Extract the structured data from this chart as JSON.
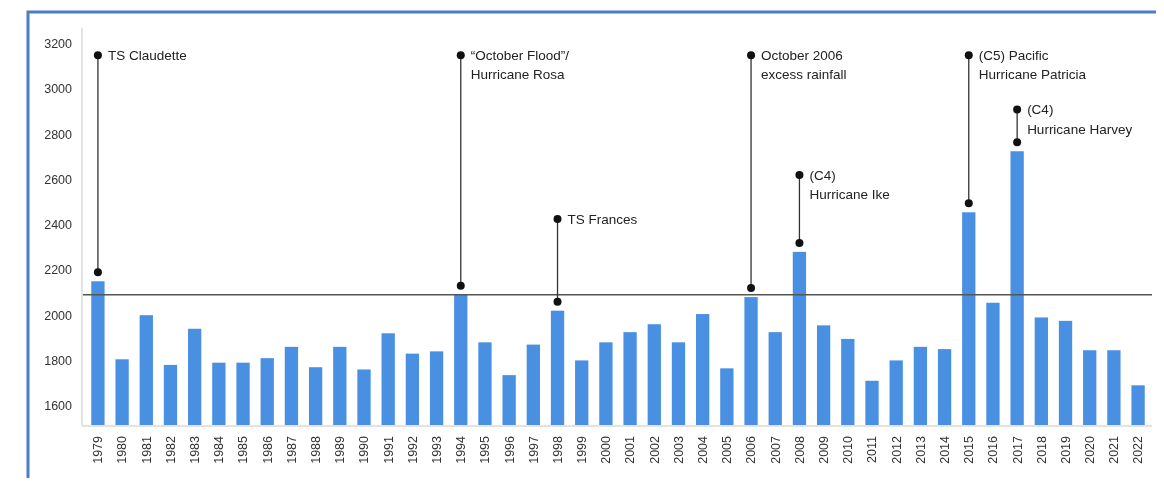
{
  "chart_data": {
    "type": "bar",
    "categories": [
      "1979",
      "1980",
      "1981",
      "1982",
      "1983",
      "1984",
      "1985",
      "1986",
      "1987",
      "1988",
      "1989",
      "1990",
      "1991",
      "1992",
      "1993",
      "1994",
      "1995",
      "1996",
      "1997",
      "1998",
      "1999",
      "2000",
      "2001",
      "2002",
      "2003",
      "2004",
      "2005",
      "2006",
      "2007",
      "2008",
      "2009",
      "2010",
      "2011",
      "2012",
      "2013",
      "2014",
      "2015",
      "2016",
      "2017",
      "2018",
      "2019",
      "2020",
      "2021",
      "2022"
    ],
    "series": [
      {
        "color": "#4a90e2",
        "values": [
          2150,
          1805,
          2000,
          1780,
          1940,
          1790,
          1790,
          1810,
          1860,
          1770,
          1860,
          1760,
          1920,
          1830,
          1840,
          2090,
          1880,
          1735,
          1870,
          2020,
          1800,
          1880,
          1925,
          1960,
          1880,
          2005,
          1765,
          2080,
          1925,
          2280,
          1955,
          1895,
          1710,
          1800,
          1860,
          1850,
          2455,
          2055,
          2725,
          1990,
          1975,
          1845,
          1845,
          1690
        ]
      }
    ],
    "ylim": [
      1510,
      3270
    ],
    "yticks": [
      1600,
      1800,
      2000,
      2200,
      2400,
      2600,
      2800,
      3000,
      3200
    ],
    "grid": false,
    "ref_lines": [
      {
        "axis": "y",
        "value": 2090,
        "color": "#555555"
      }
    ],
    "annotations": [
      {
        "text": "TS Claudette",
        "x": "1979",
        "y": 3150
      },
      {
        "text": "“October Flood”/\nHurricane Rosa",
        "x": "1994",
        "y": 3150
      },
      {
        "text": "TS Frances",
        "x": "1998",
        "y": 2425
      },
      {
        "text": "October 2006\nexcess rainfall",
        "x": "2006",
        "y": 3150
      },
      {
        "text": "(C4)\nHurricane Ike",
        "x": "2008",
        "y": 2620
      },
      {
        "text": "(C5) Pacific\nHurricane Patricia",
        "x": "2015",
        "y": 3150
      },
      {
        "text": "(C4)\nHurricane Harvey",
        "x": "2017",
        "y": 2910
      }
    ]
  }
}
